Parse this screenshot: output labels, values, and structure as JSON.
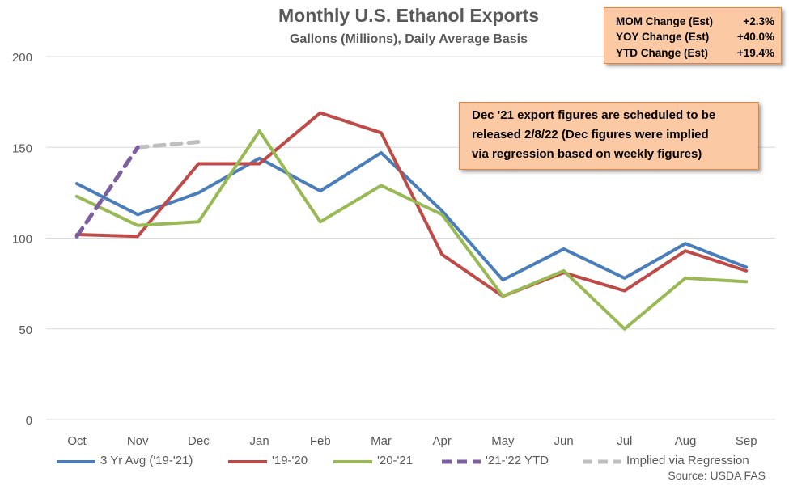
{
  "chart_data": {
    "type": "line",
    "title": "Monthly U.S. Ethanol Exports",
    "subtitle": "Gallons (Millions), Daily Average Basis",
    "categories": [
      "Oct",
      "Nov",
      "Dec",
      "Jan",
      "Feb",
      "Mar",
      "Apr",
      "May",
      "Jun",
      "Jul",
      "Aug",
      "Sep"
    ],
    "ylim": [
      0,
      200
    ],
    "yticks": [
      0,
      50,
      100,
      150,
      200
    ],
    "grid": true,
    "legend_position": "bottom",
    "series": [
      {
        "name": "3 Yr Avg ('19-'21)",
        "color": "#4a7ebb",
        "dashed": false,
        "values": [
          130,
          113,
          125,
          144,
          126,
          147,
          115,
          77,
          94,
          78,
          97,
          84
        ]
      },
      {
        "name": "'19-'20",
        "color": "#be4b48",
        "dashed": false,
        "values": [
          102,
          101,
          141,
          141,
          169,
          158,
          91,
          68,
          81,
          71,
          93,
          82
        ]
      },
      {
        "name": "'20-'21",
        "color": "#98b954",
        "dashed": false,
        "values": [
          123,
          107,
          109,
          159,
          109,
          129,
          113,
          68,
          82,
          50,
          78,
          76
        ]
      },
      {
        "name": "'21-'22 YTD",
        "color": "#7d5fa0",
        "dashed": true,
        "values": [
          101,
          150,
          null,
          null,
          null,
          null,
          null,
          null,
          null,
          null,
          null,
          null
        ]
      },
      {
        "name": "Implied via Regression",
        "color": "#bfbfbf",
        "dashed": true,
        "values": [
          null,
          150,
          153,
          null,
          null,
          null,
          null,
          null,
          null,
          null,
          null,
          null
        ]
      }
    ]
  },
  "stats": [
    {
      "label": "MOM Change (Est)",
      "value": "+2.3%"
    },
    {
      "label": "YOY Change (Est)",
      "value": "+40.0%"
    },
    {
      "label": "YTD Change (Est)",
      "value": "+19.4%"
    }
  ],
  "note": {
    "line1": "Dec '21 export figures are scheduled to be",
    "line2": "released 2/8/22 (Dec figures were implied",
    "line3": "via regression based on weekly figures)"
  },
  "source": "Source: USDA FAS",
  "colors": {
    "axis_text": "#595959",
    "gridline": "#d9d9d9",
    "box_fill": "#fbc9a3",
    "box_border": "#e8823d"
  }
}
